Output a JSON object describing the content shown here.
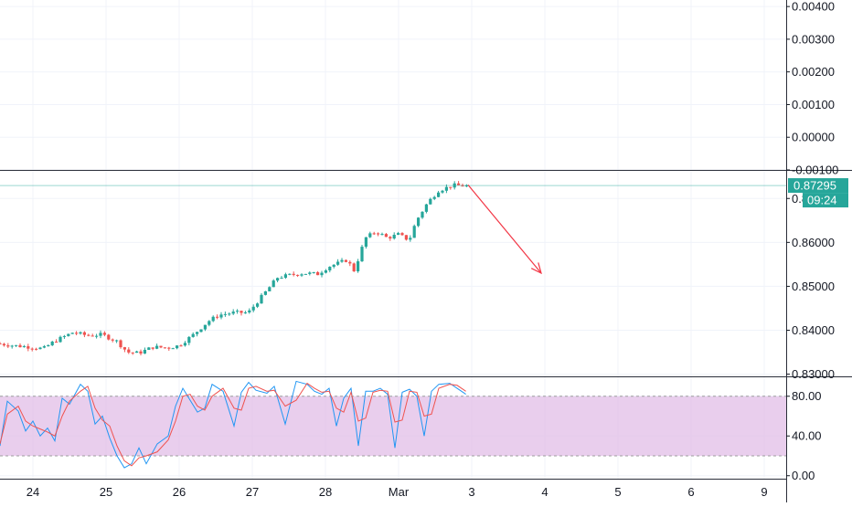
{
  "colors": {
    "up": "#26a69a",
    "down": "#ef5350",
    "k_line": "#2196f3",
    "d_line": "#ef5350",
    "band_fill": "#e1bee7",
    "last_price_label": "#26a69a",
    "annotation_arrow": "#f23645"
  },
  "chart_data": [
    {
      "type": "line",
      "pane": "top-indicator",
      "ylim": [
        -0.001,
        0.0042
      ],
      "y_ticks": [
        "0.00400",
        "0.00300",
        "0.00200",
        "0.00100",
        "0.00000",
        "-0.00100"
      ],
      "y_tick_values": [
        0.004,
        0.003,
        0.002,
        0.001,
        0.0,
        -0.001
      ],
      "series": []
    },
    {
      "type": "candlestick",
      "pane": "price",
      "ylim": [
        0.8295,
        0.8765
      ],
      "y_ticks": [
        "0.83000",
        "0.84000",
        "0.85000",
        "0.86000",
        "0.87000"
      ],
      "y_tick_values": [
        0.83,
        0.84,
        0.85,
        0.86,
        0.87
      ],
      "x_ticks": [
        "24",
        "25",
        "26",
        "27",
        "28",
        "Mar",
        "3",
        "4",
        "5",
        "6",
        "9"
      ],
      "x_tick_values": [
        24,
        25,
        26,
        27,
        28,
        29,
        30,
        31,
        32,
        33,
        34
      ],
      "xlim": [
        23.55,
        34.3
      ],
      "last_price": {
        "value": 0.87295,
        "label": "0.87295",
        "countdown": "09:24"
      },
      "anchors": [
        [
          23.55,
          0.837
        ],
        [
          23.8,
          0.8365
        ],
        [
          24.0,
          0.8362
        ],
        [
          24.2,
          0.8358
        ],
        [
          24.35,
          0.8375
        ],
        [
          24.6,
          0.8395
        ],
        [
          24.8,
          0.8388
        ],
        [
          25.0,
          0.839
        ],
        [
          25.2,
          0.8375
        ],
        [
          25.35,
          0.835
        ],
        [
          25.5,
          0.8348
        ],
        [
          25.7,
          0.8362
        ],
        [
          25.9,
          0.836
        ],
        [
          26.05,
          0.8365
        ],
        [
          26.25,
          0.839
        ],
        [
          26.45,
          0.842
        ],
        [
          26.6,
          0.8435
        ],
        [
          26.8,
          0.844
        ],
        [
          27.0,
          0.844
        ],
        [
          27.2,
          0.848
        ],
        [
          27.4,
          0.852
        ],
        [
          27.55,
          0.8525
        ],
        [
          27.75,
          0.853
        ],
        [
          27.95,
          0.8528
        ],
        [
          28.1,
          0.8545
        ],
        [
          28.35,
          0.856
        ],
        [
          28.45,
          0.8535
        ],
        [
          28.6,
          0.861
        ],
        [
          28.75,
          0.8625
        ],
        [
          28.9,
          0.861
        ],
        [
          29.05,
          0.8618
        ],
        [
          29.2,
          0.8605
        ],
        [
          29.3,
          0.865
        ],
        [
          29.45,
          0.869
        ],
        [
          29.6,
          0.8718
        ],
        [
          29.8,
          0.873
        ],
        [
          29.95,
          0.8729
        ]
      ],
      "annotation": {
        "type": "arrow",
        "from": [
          29.95,
          0.8731
        ],
        "to": [
          30.95,
          0.853
        ]
      }
    },
    {
      "type": "line",
      "pane": "stochastic",
      "ylim": [
        -3,
        100
      ],
      "y_ticks": [
        "80.00",
        "40.00",
        "0.00"
      ],
      "y_tick_values": [
        80,
        40,
        0
      ],
      "band": [
        20,
        80
      ],
      "series": [
        {
          "role": "K",
          "x": [
            23.55,
            23.65,
            23.8,
            23.9,
            24.0,
            24.1,
            24.2,
            24.3,
            24.4,
            24.5,
            24.65,
            24.75,
            24.85,
            24.95,
            25.05,
            25.15,
            25.25,
            25.35,
            25.45,
            25.55,
            25.7,
            25.85,
            25.95,
            26.05,
            26.15,
            26.25,
            26.35,
            26.45,
            26.6,
            26.75,
            26.85,
            26.95,
            27.05,
            27.2,
            27.3,
            27.45,
            27.6,
            27.75,
            27.85,
            27.95,
            28.05,
            28.15,
            28.25,
            28.35,
            28.45,
            28.55,
            28.65,
            28.75,
            28.85,
            28.95,
            29.05,
            29.15,
            29.25,
            29.35,
            29.45,
            29.55,
            29.7,
            29.8,
            29.92
          ],
          "values": [
            30,
            75,
            65,
            45,
            55,
            40,
            48,
            35,
            78,
            72,
            92,
            85,
            52,
            60,
            38,
            20,
            8,
            12,
            28,
            12,
            32,
            40,
            70,
            88,
            76,
            64,
            68,
            92,
            85,
            50,
            84,
            94,
            86,
            83,
            90,
            52,
            95,
            92,
            85,
            82,
            88,
            50,
            78,
            88,
            30,
            85,
            85,
            88,
            82,
            28,
            84,
            87,
            80,
            40,
            85,
            92,
            93,
            88,
            82
          ]
        },
        {
          "role": "D",
          "x": [
            23.55,
            23.65,
            23.8,
            23.9,
            24.0,
            24.1,
            24.2,
            24.3,
            24.4,
            24.5,
            24.65,
            24.75,
            24.85,
            24.95,
            25.05,
            25.15,
            25.25,
            25.35,
            25.45,
            25.55,
            25.7,
            25.85,
            25.95,
            26.05,
            26.15,
            26.25,
            26.35,
            26.45,
            26.6,
            26.75,
            26.85,
            26.95,
            27.05,
            27.2,
            27.3,
            27.45,
            27.6,
            27.75,
            27.85,
            27.95,
            28.05,
            28.15,
            28.25,
            28.35,
            28.45,
            28.55,
            28.65,
            28.75,
            28.85,
            28.95,
            29.05,
            29.15,
            29.25,
            29.35,
            29.45,
            29.55,
            29.7,
            29.8,
            29.92
          ],
          "values": [
            32,
            62,
            70,
            55,
            50,
            47,
            44,
            40,
            60,
            75,
            85,
            90,
            68,
            56,
            50,
            30,
            15,
            10,
            18,
            20,
            24,
            36,
            55,
            80,
            82,
            70,
            66,
            80,
            88,
            68,
            66,
            88,
            90,
            85,
            86,
            70,
            76,
            93,
            88,
            84,
            85,
            68,
            64,
            84,
            55,
            58,
            84,
            86,
            85,
            54,
            56,
            85,
            84,
            60,
            62,
            88,
            92,
            91,
            85
          ]
        }
      ]
    }
  ]
}
